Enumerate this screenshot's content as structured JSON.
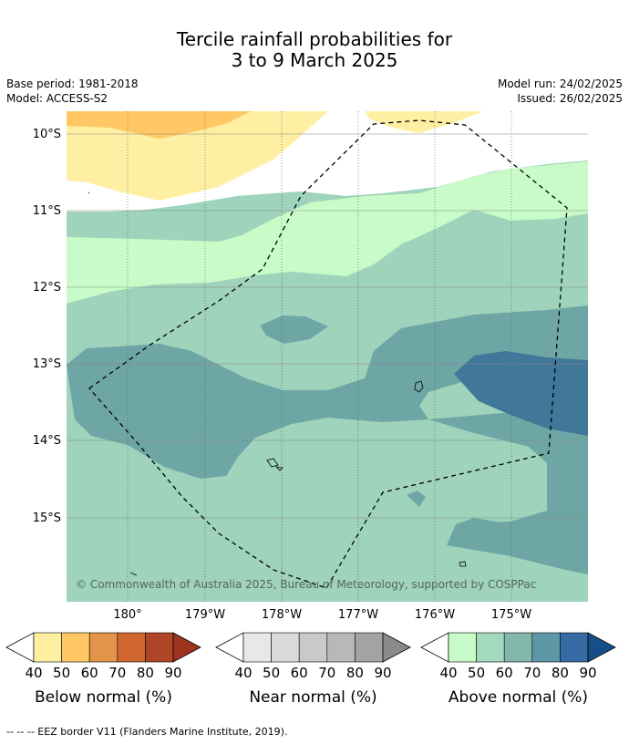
{
  "title_line1": "Tercile rainfall probabilities for",
  "title_line2": "3 to 9 March 2025",
  "base_period": "Base period: 1981-2018",
  "model": "Model: ACCESS-S2",
  "model_run": "Model run: 24/02/2025",
  "issued": "Issued: 26/02/2025",
  "lat_labels": [
    "10°S",
    "11°S",
    "12°S",
    "13°S",
    "14°S",
    "15°S"
  ],
  "lon_labels": [
    "180°",
    "179°W",
    "178°W",
    "177°W",
    "176°W",
    "175°W"
  ],
  "copyright": "© Commonwealth of Australia 2025, Bureau of Meteorology, supported by COSPPac",
  "colorbars": [
    {
      "title": "Below normal (%)",
      "ticks": [
        "40",
        "50",
        "60",
        "70",
        "80",
        "90"
      ],
      "colors": [
        "#ffefa3",
        "#ffc864",
        "#e29548",
        "#d0662f",
        "#ae4526",
        "#9c331e"
      ]
    },
    {
      "title": "Near normal (%)",
      "ticks": [
        "40",
        "50",
        "60",
        "70",
        "80",
        "90"
      ],
      "colors": [
        "#e8e8e8",
        "#d9d9d9",
        "#c9c9c9",
        "#b8b8b8",
        "#a3a3a3",
        "#8a8a8a"
      ]
    },
    {
      "title": "Above normal (%)",
      "ticks": [
        "40",
        "50",
        "60",
        "70",
        "80",
        "90"
      ],
      "colors": [
        "#c8fbc8",
        "#a3d9bd",
        "#84b7ab",
        "#5d96a4",
        "#366aa2",
        "#164f88"
      ]
    }
  ],
  "map_colors": {
    "below_40": "#ffefa3",
    "below_50": "#ffc864",
    "above_40": "#c8fbc8",
    "above_50": "#9fd3bb",
    "above_60": "#6ea6a6",
    "above_70": "#41789a"
  },
  "footer": "--  --  -- EEZ border V11 (Flanders Marine Institute, 2019)."
}
